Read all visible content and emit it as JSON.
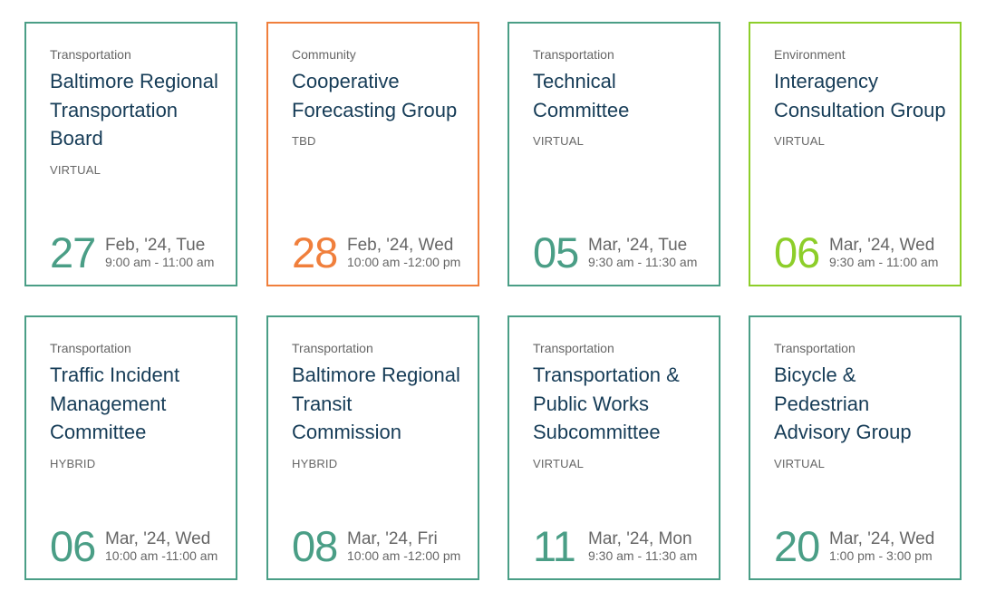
{
  "meetings": [
    {
      "category": "Transportation",
      "title": "Baltimore Regional Transportation Board",
      "mode": "VIRTUAL",
      "day": "27",
      "date": "Feb, '24, Tue",
      "time": "9:00 am -  11:00 am"
    },
    {
      "category": "Community",
      "title": "Cooperative Forecasting Group",
      "mode": "TBD",
      "day": "28",
      "date": "Feb, '24, Wed",
      "time": "10:00 am -12:00 pm"
    },
    {
      "category": "Transportation",
      "title": "Technical Committee",
      "mode": "VIRTUAL",
      "day": "05",
      "date": "Mar, '24, Tue",
      "time": "9:30 am -  11:30 am"
    },
    {
      "category": "Environment",
      "title": "Interagency Consultation Group",
      "mode": "VIRTUAL",
      "day": "06",
      "date": "Mar, '24, Wed",
      "time": "9:30 am -  11:00 am"
    },
    {
      "category": "Transportation",
      "title": "Traffic Incident Management Committee",
      "mode": "HYBRID",
      "day": "06",
      "date": "Mar, '24, Wed",
      "time": "10:00 am -11:00 am"
    },
    {
      "category": "Transportation",
      "title": "Baltimore Regional Transit Commission",
      "mode": "HYBRID",
      "day": "08",
      "date": "Mar, '24, Fri",
      "time": "10:00 am -12:00 pm"
    },
    {
      "category": "Transportation",
      "title": "Transportation & Public Works Subcommittee",
      "mode": "VIRTUAL",
      "day": "11",
      "date": "Mar, '24, Mon",
      "time": "9:30 am -  11:30 am"
    },
    {
      "category": "Transportation",
      "title": "Bicycle & Pedestrian Advisory Group",
      "mode": "VIRTUAL",
      "day": "20",
      "date": "Mar, '24, Wed",
      "time": "1:00 pm -  3:00 pm"
    }
  ],
  "colors": {
    "transportation": "#4a9e86",
    "community": "#f07f3c",
    "environment": "#8dce2a",
    "title": "#163c57",
    "muted": "#666666"
  }
}
